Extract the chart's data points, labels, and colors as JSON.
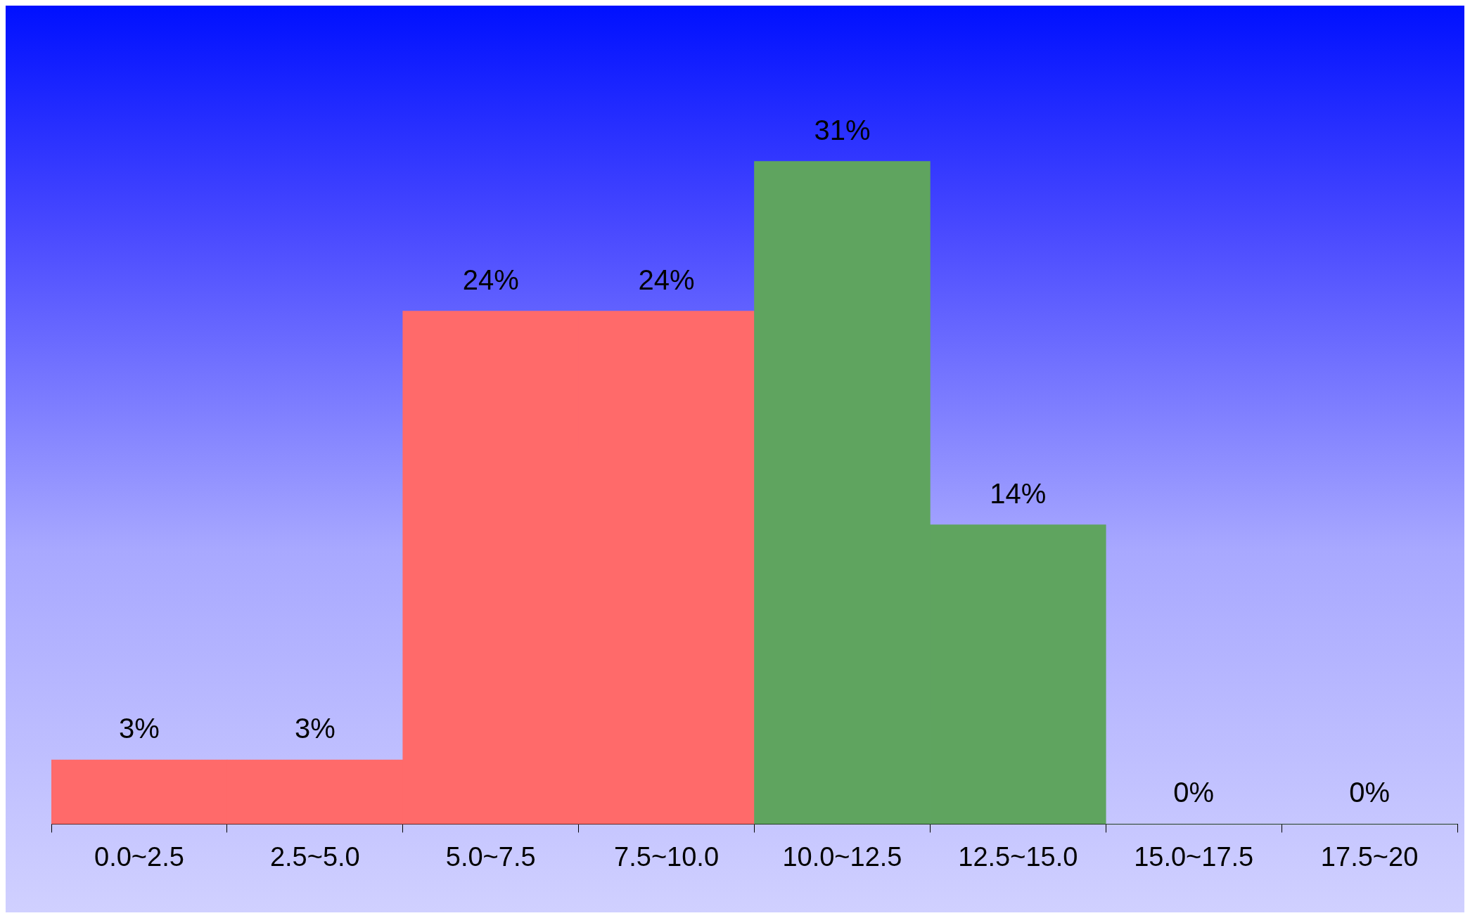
{
  "chart_data": {
    "type": "bar",
    "categories": [
      "0.0~2.5",
      "2.5~5.0",
      "5.0~7.5",
      "7.5~10.0",
      "10.0~12.5",
      "12.5~15.0",
      "15.0~17.5",
      "17.5~20"
    ],
    "values": [
      3,
      3,
      24,
      24,
      31,
      14,
      0,
      0
    ],
    "colors": [
      "#ff6a6a",
      "#ff6a6a",
      "#ff6a6a",
      "#ff6a6a",
      "#5fa45f",
      "#5fa45f",
      "#5fa45f",
      "#5fa45f"
    ],
    "value_labels": [
      "3%",
      "3%",
      "24%",
      "24%",
      "31%",
      "14%",
      "0%",
      "0%"
    ],
    "grid": false,
    "legend": false
  }
}
